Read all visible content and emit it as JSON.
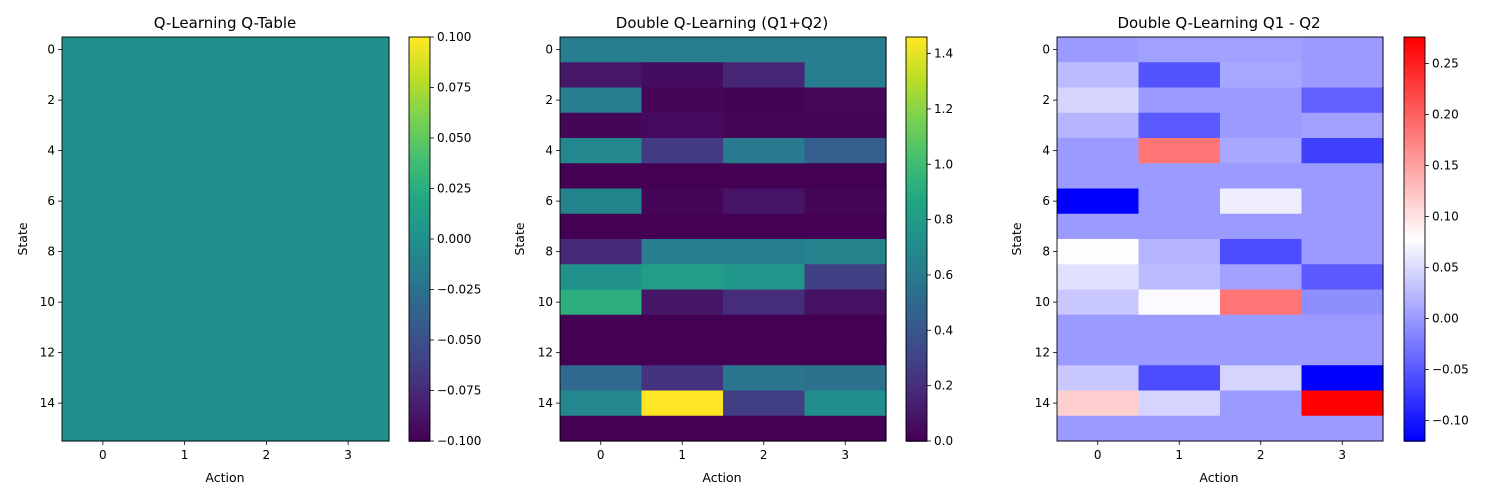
{
  "chart_data": [
    {
      "type": "heatmap",
      "title": "Q-Learning Q-Table",
      "xlabel": "Action",
      "ylabel": "State",
      "colormap": "viridis",
      "vmin": -0.1,
      "vmax": 0.1,
      "x_ticks": [
        "0",
        "1",
        "2",
        "3"
      ],
      "y_ticks": [
        "0",
        "2",
        "4",
        "6",
        "8",
        "10",
        "12",
        "14"
      ],
      "colorbar_ticks": [
        "0.100",
        "0.075",
        "0.050",
        "0.025",
        "0.000",
        "−0.025",
        "−0.050",
        "−0.075",
        "−0.100"
      ],
      "colorbar_tick_values": [
        0.1,
        0.075,
        0.05,
        0.025,
        0.0,
        -0.025,
        -0.05,
        -0.075,
        -0.1
      ],
      "values": [
        [
          0,
          0,
          0,
          0
        ],
        [
          0,
          0,
          0,
          0
        ],
        [
          0,
          0,
          0,
          0
        ],
        [
          0,
          0,
          0,
          0
        ],
        [
          0,
          0,
          0,
          0
        ],
        [
          0,
          0,
          0,
          0
        ],
        [
          0,
          0,
          0,
          0
        ],
        [
          0,
          0,
          0,
          0
        ],
        [
          0,
          0,
          0,
          0
        ],
        [
          0,
          0,
          0,
          0
        ],
        [
          0,
          0,
          0,
          0
        ],
        [
          0,
          0,
          0,
          0
        ],
        [
          0,
          0,
          0,
          0
        ],
        [
          0,
          0,
          0,
          0
        ],
        [
          0,
          0,
          0,
          0
        ],
        [
          0,
          0,
          0,
          0
        ]
      ]
    },
    {
      "type": "heatmap",
      "title": "Double Q-Learning (Q1+Q2)",
      "xlabel": "Action",
      "ylabel": "State",
      "colormap": "viridis",
      "vmin": 0.0,
      "vmax": 1.46,
      "x_ticks": [
        "0",
        "1",
        "2",
        "3"
      ],
      "y_ticks": [
        "0",
        "2",
        "4",
        "6",
        "8",
        "10",
        "12",
        "14"
      ],
      "colorbar_ticks": [
        "1.4",
        "1.2",
        "1.0",
        "0.8",
        "0.6",
        "0.4",
        "0.2",
        "0.0"
      ],
      "colorbar_tick_values": [
        1.4,
        1.2,
        1.0,
        0.8,
        0.6,
        0.4,
        0.2,
        0.0
      ],
      "values": [
        [
          0.62,
          0.62,
          0.62,
          0.62
        ],
        [
          0.1,
          0.05,
          0.16,
          0.62
        ],
        [
          0.62,
          0.02,
          0.01,
          0.03
        ],
        [
          0.02,
          0.04,
          0.02,
          0.02
        ],
        [
          0.68,
          0.25,
          0.6,
          0.44
        ],
        [
          0.0,
          0.0,
          0.0,
          0.0
        ],
        [
          0.66,
          0.02,
          0.08,
          0.02
        ],
        [
          0.0,
          0.0,
          0.0,
          0.0
        ],
        [
          0.18,
          0.62,
          0.62,
          0.65
        ],
        [
          0.74,
          0.82,
          0.77,
          0.28
        ],
        [
          0.92,
          0.09,
          0.19,
          0.07
        ],
        [
          0.0,
          0.0,
          0.0,
          0.0
        ],
        [
          0.0,
          0.0,
          0.0,
          0.0
        ],
        [
          0.5,
          0.22,
          0.57,
          0.55
        ],
        [
          0.68,
          1.46,
          0.27,
          0.72
        ],
        [
          0.0,
          0.0,
          0.0,
          0.0
        ]
      ]
    },
    {
      "type": "heatmap",
      "title": "Double Q-Learning Q1 - Q2",
      "xlabel": "Action",
      "ylabel": "State",
      "colormap": "bwr",
      "vmin": -0.12,
      "vmax": 0.276,
      "x_ticks": [
        "0",
        "1",
        "2",
        "3"
      ],
      "y_ticks": [
        "0",
        "2",
        "4",
        "6",
        "8",
        "10",
        "12",
        "14"
      ],
      "colorbar_ticks": [
        "0.25",
        "0.20",
        "0.15",
        "0.10",
        "0.05",
        "0.00",
        "−0.05",
        "−0.10"
      ],
      "colorbar_tick_values": [
        0.25,
        0.2,
        0.15,
        0.1,
        0.05,
        0.0,
        -0.05,
        -0.1
      ],
      "values": [
        [
          0.0,
          0.005,
          0.005,
          0.0
        ],
        [
          0.025,
          -0.055,
          0.01,
          0.0
        ],
        [
          0.045,
          0.0,
          0.0,
          -0.045
        ],
        [
          0.02,
          -0.05,
          0.0,
          0.005
        ],
        [
          0.0,
          0.185,
          0.01,
          -0.07
        ],
        [
          0.0,
          0.0,
          0.0,
          0.0
        ],
        [
          -0.12,
          0.0,
          0.065,
          0.0
        ],
        [
          0.0,
          0.0,
          0.0,
          0.0
        ],
        [
          0.08,
          0.02,
          -0.06,
          0.0
        ],
        [
          0.055,
          0.025,
          0.005,
          -0.05
        ],
        [
          0.035,
          0.075,
          0.185,
          -0.01
        ],
        [
          0.0,
          0.0,
          0.0,
          0.0
        ],
        [
          0.0,
          0.0,
          0.0,
          0.0
        ],
        [
          0.035,
          -0.06,
          0.045,
          -0.12
        ],
        [
          0.115,
          0.045,
          0.0,
          0.276
        ],
        [
          0.0,
          0.0,
          0.0,
          0.0
        ]
      ]
    }
  ]
}
